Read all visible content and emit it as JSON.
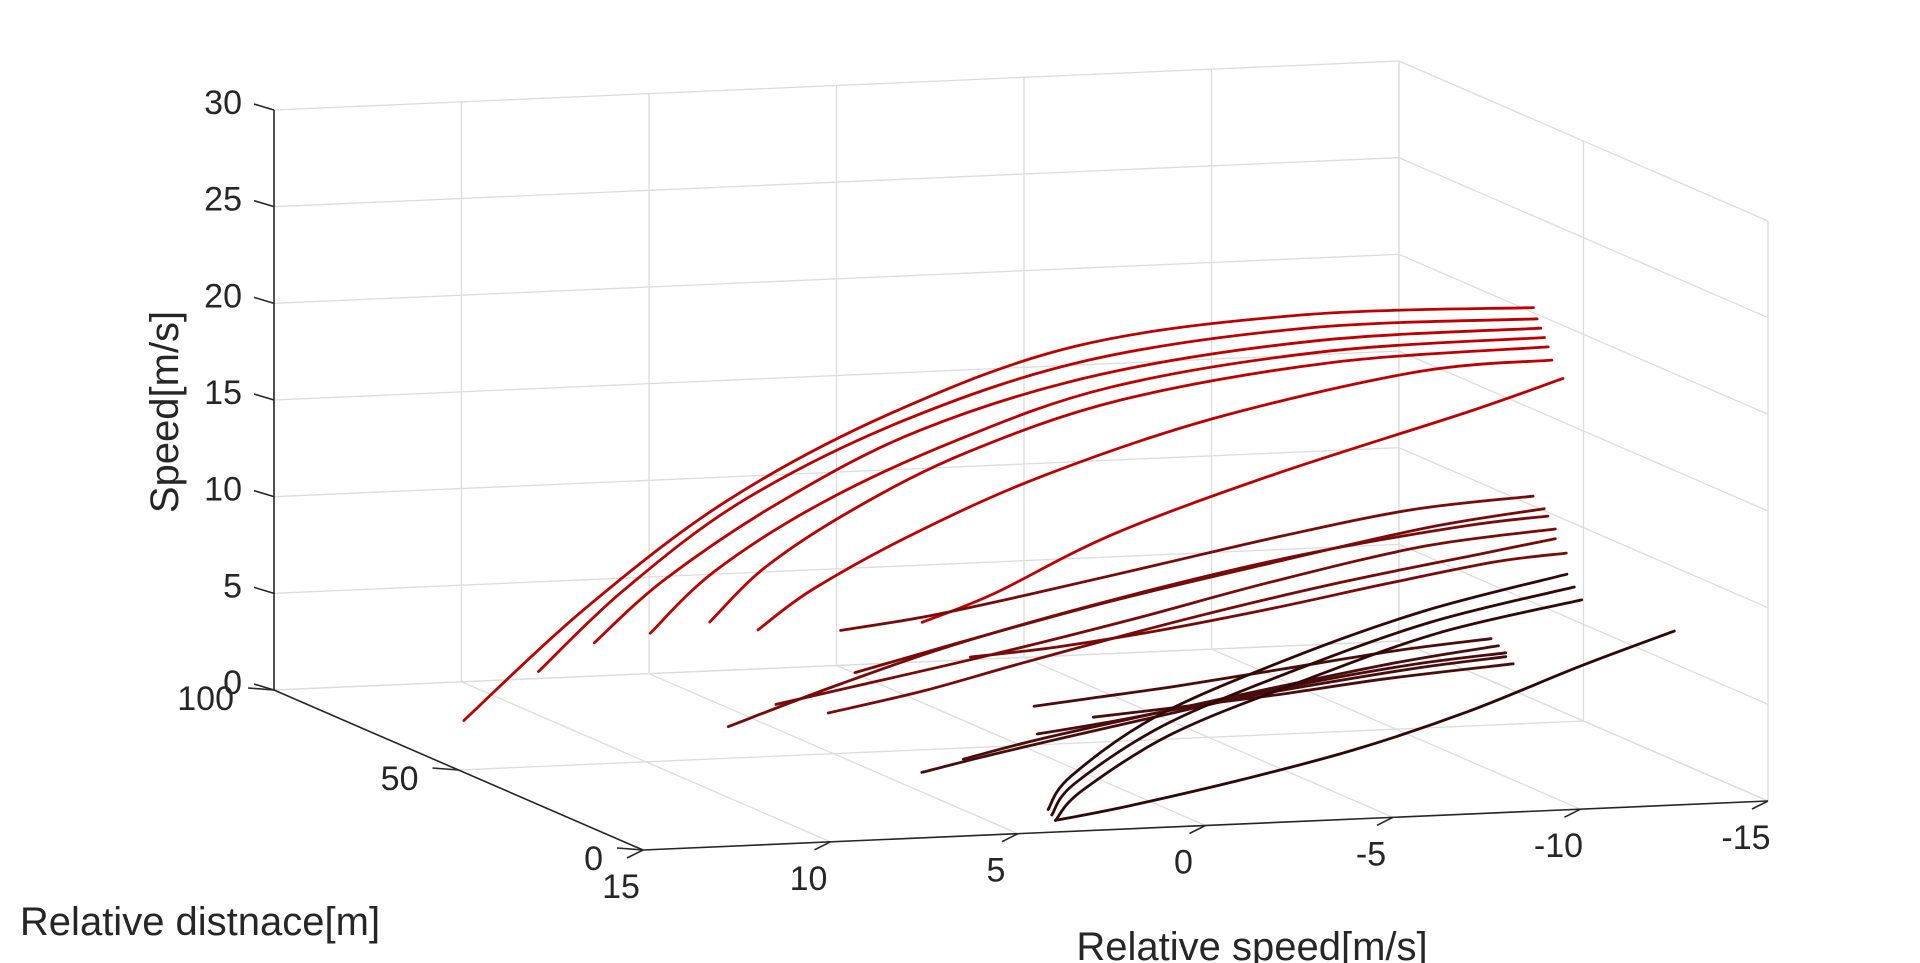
{
  "chart_data": {
    "type": "line3d",
    "xlabel": "Relative speed[m/s]",
    "ylabel": "Relative distnace[m]",
    "zlabel": "Speed[m/s]",
    "x_ticks": [
      "15",
      "10",
      "5",
      "0",
      "-5",
      "-10",
      "-15"
    ],
    "y_ticks": [
      "0",
      "50",
      "100"
    ],
    "z_ticks": [
      "0",
      "5",
      "10",
      "15",
      "20",
      "25",
      "30"
    ],
    "xlim": [
      -15,
      15
    ],
    "ylim": [
      0,
      100
    ],
    "zlim": [
      0,
      30
    ],
    "grid": true,
    "colors": {
      "high_speed": "#c00000",
      "mid_speed": "#7a0a0a",
      "low_speed": "#4a0c0c",
      "lowest_speed": "#300808"
    },
    "series_groups": [
      {
        "color": "#c00000",
        "curves": [
          {
            "x": [
              -11.5,
              -6,
              -1,
              3,
              6.5,
              9.5,
              12.1
            ],
            "y": [
              28,
              35,
              45,
              55,
              64,
              72,
              78
            ],
            "z": [
              23.5,
              23,
              21,
              17,
              12,
              6,
              0
            ]
          },
          {
            "x": [
              -11.5,
              -6,
              -1,
              3,
              6.5,
              9.0,
              10.8
            ],
            "y": [
              27,
              33,
              42,
              51,
              59,
              66,
              71
            ],
            "z": [
              23.0,
              22.5,
              20.5,
              17,
              12.5,
              7.5,
              3
            ]
          },
          {
            "x": [
              -11.5,
              -6,
              -1,
              3,
              6.0,
              8.5,
              10.0
            ],
            "y": [
              26,
              31,
              39,
              47,
              54,
              60,
              64
            ],
            "z": [
              22.6,
              22.0,
              20.0,
              16.8,
              12.8,
              8.5,
              5
            ]
          },
          {
            "x": [
              -11.5,
              -6,
              -1,
              2.5,
              5.5,
              7.8,
              9.2
            ],
            "y": [
              25,
              29,
              36,
              43,
              49,
              54,
              57
            ],
            "z": [
              22.2,
              21.6,
              19.6,
              16.5,
              13.0,
              9.3,
              6
            ]
          },
          {
            "x": [
              -11.5,
              -6,
              -1,
              2.5,
              5.0,
              7.0,
              8.2
            ],
            "y": [
              24,
              27,
              33,
              39,
              44,
              48,
              51
            ],
            "z": [
              21.8,
              21.2,
              19.2,
              16.3,
              13.2,
              10.0,
              7
            ]
          },
          {
            "x": [
              -11.5,
              -8,
              -3,
              1,
              4,
              6.5,
              7.8
            ],
            "y": [
              23,
              24,
              28,
              33,
              37,
              40,
              42
            ],
            "z": [
              21.2,
              20.8,
              18.5,
              15.5,
              12.5,
              9.5,
              7.3
            ]
          },
          {
            "x": [
              -11.5,
              -9,
              -4,
              0,
              3,
              4.8
            ],
            "y": [
              20,
              20,
              22,
              25,
              27,
              28
            ],
            "z": [
              20.5,
              19.0,
              16.0,
              13.0,
              10.0,
              8.6
            ]
          }
        ]
      },
      {
        "color": "#7a0a0a",
        "curves": [
          {
            "x": [
              -11.0,
              -7.5,
              -3.5,
              0,
              3.5,
              6.5,
              8.5
            ],
            "y": [
              17,
              17,
              18,
              20,
              23,
              27,
              30
            ],
            "z": [
              13.0,
              12.4,
              10.8,
              9.0,
              7.2,
              5.6,
              4.5
            ]
          },
          {
            "x": [
              -11.0,
              -9,
              -5,
              -1,
              3,
              5.8,
              8.2
            ],
            "y": [
              19,
              21,
              25,
              29,
              34,
              40,
              46
            ],
            "z": [
              13.5,
              13.0,
              11.5,
              9.5,
              7.0,
              4.5,
              2.0
            ]
          },
          {
            "x": [
              -11.0,
              -8,
              -4,
              0,
              3.5,
              6.0
            ],
            "y": [
              20,
              21,
              24,
              27,
              31,
              34
            ],
            "z": [
              13.8,
              13.0,
              11.2,
              9.3,
              7.2,
              5.6
            ]
          },
          {
            "x": [
              -11.0,
              -9,
              -5,
              -1,
              3,
              5.5,
              7.5
            ],
            "y": [
              17,
              16,
              14,
              14,
              16,
              20,
              26
            ],
            "z": [
              12.5,
              12.0,
              11.0,
              9.5,
              7.5,
              5.8,
              4.3
            ]
          },
          {
            "x": [
              -11.0,
              -9,
              -6,
              -3,
              0,
              2.5,
              4.5
            ],
            "y": [
              14,
              13,
              12,
              12,
              13,
              15,
              18
            ],
            "z": [
              12.0,
              11.8,
              11.0,
              10.0,
              9.0,
              8.2,
              7.6
            ]
          },
          {
            "x": [
              -11.0,
              -8,
              -5,
              -2,
              1,
              3.5,
              5.5
            ],
            "y": [
              23,
              25,
              29,
              33,
              37,
              40,
              43
            ],
            "z": [
              14.2,
              13.6,
              12.2,
              10.6,
              9.0,
              7.8,
              7.0
            ]
          }
        ]
      },
      {
        "color": "#4a0c0c",
        "curves": [
          {
            "x": [
              -8.5,
              -6,
              -3,
              0,
              2.5,
              4.2,
              5.2
            ],
            "y": [
              5,
              5,
              6,
              8,
              12,
              18,
              24
            ],
            "z": [
              7.8,
              7.4,
              6.5,
              5.2,
              3.8,
              2.4,
              1.2
            ]
          },
          {
            "x": [
              -8.5,
              -6,
              -3,
              0,
              2.5,
              4.0
            ],
            "y": [
              7,
              8,
              11,
              15,
              20,
              25
            ],
            "z": [
              8.0,
              7.3,
              6.0,
              4.5,
              3.0,
              1.7
            ]
          },
          {
            "x": [
              -8.5,
              -6,
              -3,
              0,
              2.0,
              3.5
            ],
            "y": [
              5,
              4,
              4,
              5,
              7,
              10
            ],
            "z": [
              7.6,
              7.3,
              6.6,
              5.7,
              4.9,
              4.2
            ]
          },
          {
            "x": [
              -8.5,
              -6,
              -3,
              -0.5,
              1.5,
              3.0
            ],
            "y": [
              9,
              9,
              10,
              12,
              14,
              16
            ],
            "z": [
              8.2,
              7.8,
              7.0,
              6.2,
              5.6,
              5.1
            ]
          },
          {
            "x": [
              -8.5,
              -5,
              -2,
              0.5,
              2.5
            ],
            "y": [
              3,
              2,
              2,
              3,
              5
            ],
            "z": [
              7.4,
              7.0,
              6.4,
              5.9,
              5.4
            ]
          }
        ]
      },
      {
        "color": "#300808",
        "curves": [
          {
            "x": [
              -12.0,
              -8,
              -4,
              0,
              3.0,
              4.0
            ],
            "y": [
              20,
              18,
              14,
              9,
              3,
              0
            ],
            "z": [
              9.0,
              7.8,
              6.0,
              4.0,
              1.8,
              0.6
            ]
          },
          {
            "x": [
              -12.0,
              -8,
              -4,
              0,
              3.0,
              4.0
            ],
            "y": [
              22,
              20,
              16,
              11,
              5,
              1
            ],
            "z": [
              9.5,
              8.2,
              6.4,
              4.3,
              2.0,
              0.8
            ]
          },
          {
            "x": [
              -12.0,
              -8,
              -4,
              0,
              3.0,
              4.0
            ],
            "y": [
              24,
              22,
              18,
              13,
              6,
              2
            ],
            "z": [
              10.0,
              8.6,
              6.8,
              4.6,
              2.3,
              1.0
            ]
          },
          {
            "x": [
              4.0,
              2,
              -1,
              -4,
              -7,
              -10,
              -12.5
            ],
            "y": [
              0,
              0,
              0,
              0,
              0,
              0,
              0
            ],
            "z": [
              0.6,
              1.2,
              2.3,
              3.6,
              5.3,
              7.4,
              9.0
            ]
          }
        ]
      }
    ]
  }
}
